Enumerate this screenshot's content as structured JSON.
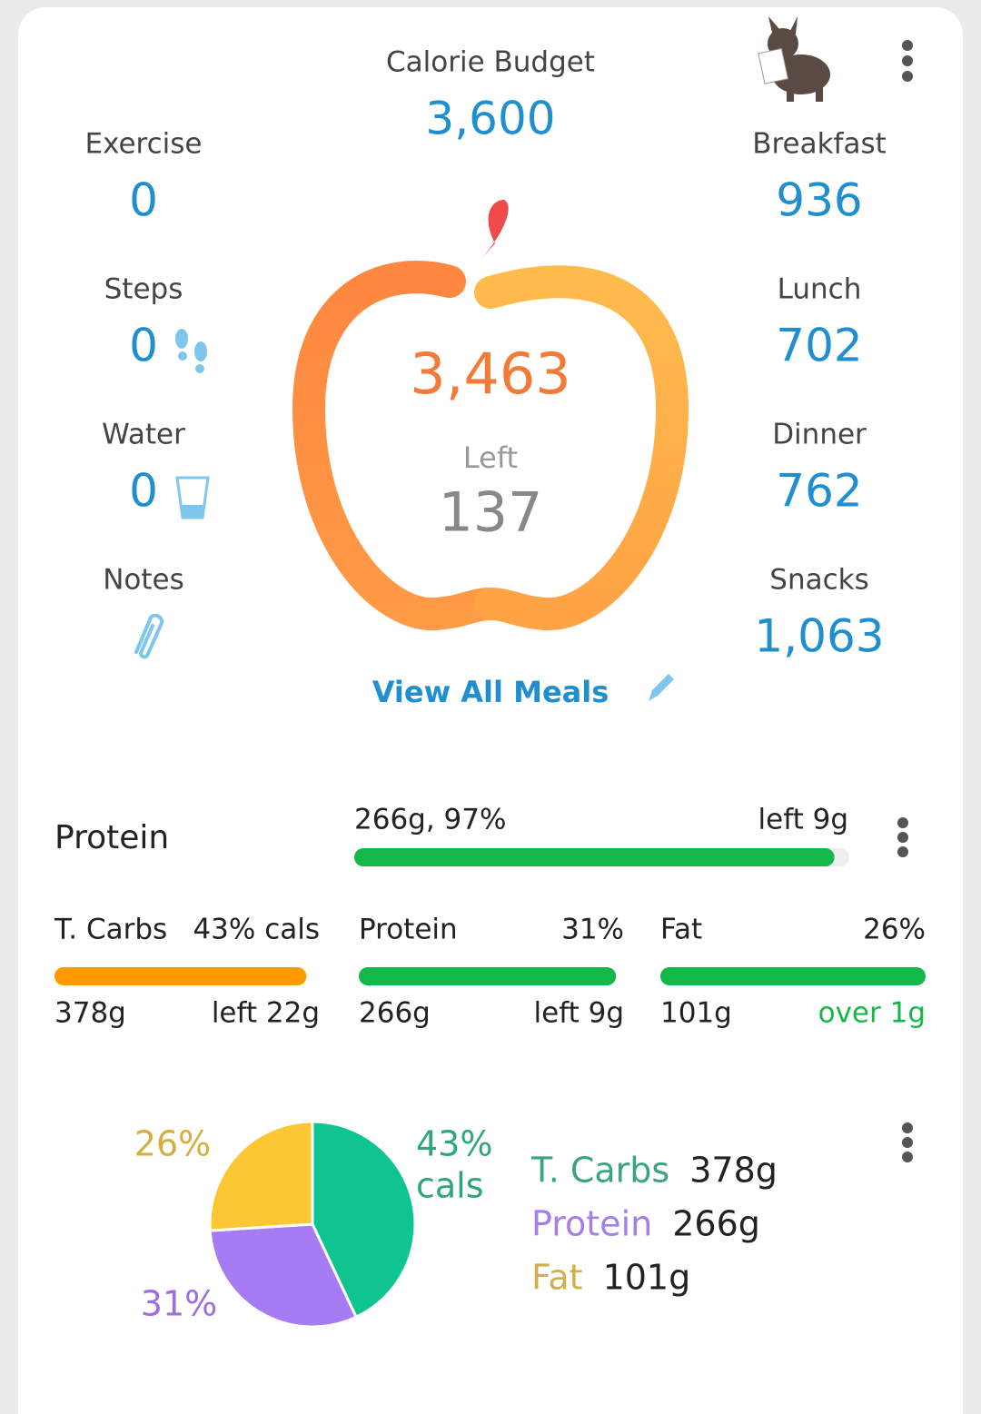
{
  "summary": {
    "budget": {
      "label": "Calorie Budget",
      "value": "3,600"
    },
    "left_column": [
      {
        "label": "Exercise",
        "value": "0"
      },
      {
        "label": "Steps",
        "value": "0"
      },
      {
        "label": "Water",
        "value": "0"
      },
      {
        "label": "Notes"
      }
    ],
    "right_column": [
      {
        "label": "Breakfast",
        "value": "936"
      },
      {
        "label": "Lunch",
        "value": "702"
      },
      {
        "label": "Dinner",
        "value": "762"
      },
      {
        "label": "Snacks",
        "value": "1,063"
      }
    ],
    "eaten": "3,463",
    "left_label": "Left",
    "left_value": "137",
    "view_all": "View All Meals"
  },
  "protein_goal": {
    "label": "Protein",
    "amount": "266g, 97%",
    "remaining": "left 9g",
    "progress": 97,
    "color": "#14b84a"
  },
  "macros": [
    {
      "name": "T. Carbs",
      "share": "43% cals",
      "amount": "378g",
      "remaining": "left 22g",
      "progress": 95,
      "color": "#ff9a00"
    },
    {
      "name": "Protein",
      "share": "31%",
      "amount": "266g",
      "remaining": "left 9g",
      "progress": 97,
      "color": "#14b84a"
    },
    {
      "name": "Fat",
      "share": "26%",
      "amount": "101g",
      "remaining": "over 1g",
      "progress": 100,
      "color": "#14b84a"
    }
  ],
  "pie": {
    "unit": "cals",
    "slices": [
      {
        "name": "T. Carbs",
        "value": 43,
        "label": "43%",
        "amount": "378g",
        "color": "#0fc491"
      },
      {
        "name": "Protein",
        "value": 31,
        "label": "31%",
        "amount": "266g",
        "color": "#a67cf2"
      },
      {
        "name": "Fat",
        "value": 26,
        "label": "26%",
        "amount": "101g",
        "color": "#fdc733"
      }
    ]
  }
}
